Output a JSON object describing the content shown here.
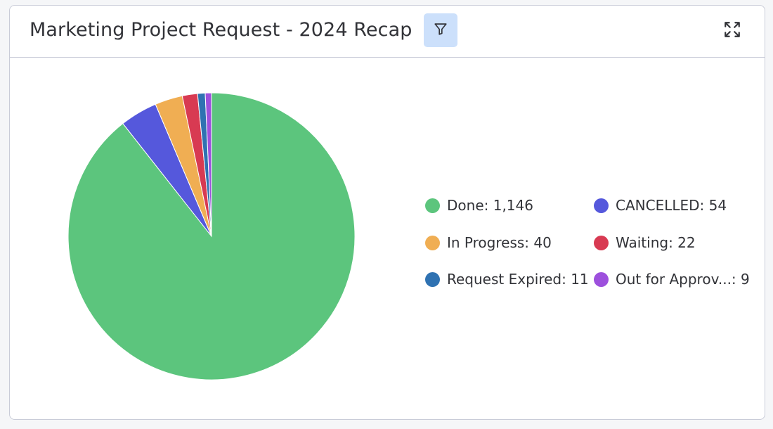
{
  "widget": {
    "title": "Marketing Project Request - 2024 Recap"
  },
  "icons": {
    "filter": "filter-icon",
    "expand": "expand-icon"
  },
  "colors": {
    "filter_button_bg": "#cce0fb"
  },
  "chart_data": {
    "type": "pie",
    "categories": [
      "Done",
      "CANCELLED",
      "In Progress",
      "Waiting",
      "Request Expired",
      "Out for Approv..."
    ],
    "values": [
      1146,
      54,
      40,
      22,
      11,
      9
    ],
    "colors": [
      "#5cc57d",
      "#5558dc",
      "#f0ae53",
      "#d83a52",
      "#2f72b2",
      "#9d50dd"
    ],
    "legend_labels": [
      "Done: 1,146",
      "CANCELLED: 54",
      "In Progress: 40",
      "Waiting: 22",
      "Request Expired: 11",
      "Out for Approv...: 9"
    ],
    "legend_position": "right"
  }
}
